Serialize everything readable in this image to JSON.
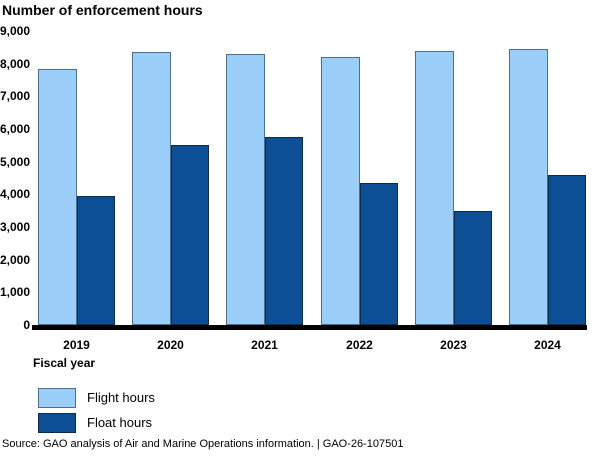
{
  "chart_data": {
    "type": "bar",
    "title": "Number of enforcement hours",
    "xlabel": "Fiscal year",
    "ylabel": "",
    "categories": [
      "2019",
      "2020",
      "2021",
      "2022",
      "2023",
      "2024"
    ],
    "series": [
      {
        "name": "Flight hours",
        "color": "#9CCEFA",
        "values": [
          7850,
          8350,
          8300,
          8200,
          8400,
          8450
        ]
      },
      {
        "name": "Float hours",
        "color": "#0D4F94",
        "values": [
          3950,
          5500,
          5750,
          4350,
          3500,
          4600
        ]
      }
    ],
    "ylim": [
      0,
      9000
    ],
    "y_tick_step": 1000,
    "y_ticks": [
      "0",
      "1,000",
      "2,000",
      "3,000",
      "4,000",
      "5,000",
      "6,000",
      "7,000",
      "8,000",
      "9,000"
    ],
    "grid": false,
    "legend_position": "below-left"
  },
  "source_line": "Source: GAO analysis of Air and Marine Operations information.  |  GAO-26-107501",
  "colors": {
    "flight_fill": "#9CCEFA",
    "flight_border": "#49708E",
    "float_fill": "#0D4F94",
    "float_border": "#0E2B47",
    "axis_line": "#000000",
    "text": "#000000",
    "background": "#FFFFFF"
  }
}
